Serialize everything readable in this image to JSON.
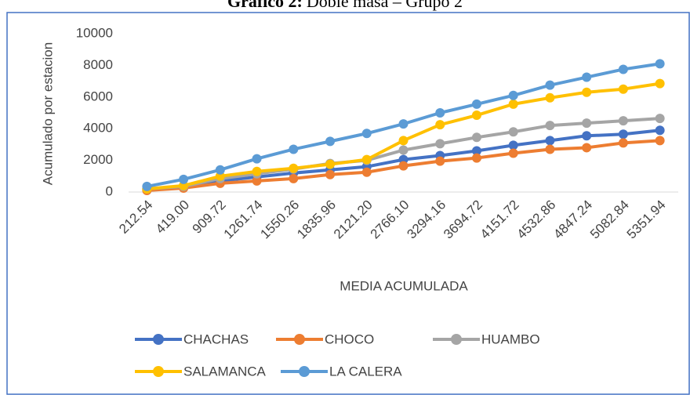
{
  "chart_data": {
    "type": "line",
    "title_prefix": "Gráfico 2:",
    "title": "Doble masa – Grupo 2",
    "x_label": "MEDIA ACUMULADA",
    "y_label": "Acumulado por estacion",
    "categories": [
      "212.54",
      "419.00",
      "909.72",
      "1261.74",
      "1550.26",
      "1835.96",
      "2121.20",
      "2766.10",
      "3294.16",
      "3694.72",
      "4151.72",
      "4532.86",
      "4847.24",
      "5082.84",
      "5351.94"
    ],
    "series": [
      {
        "name": "CHACHAS",
        "color": "#4472c4",
        "values": [
          150,
          300,
          700,
          950,
          1200,
          1400,
          1600,
          2050,
          2300,
          2600,
          2950,
          3250,
          3550,
          3650,
          3900
        ]
      },
      {
        "name": "CHOCO",
        "color": "#ed7d31",
        "values": [
          100,
          250,
          550,
          700,
          850,
          1100,
          1250,
          1650,
          1950,
          2150,
          2450,
          2700,
          2800,
          3100,
          3250
        ]
      },
      {
        "name": "HUAMBO",
        "color": "#a5a5a5",
        "values": [
          200,
          350,
          850,
          1150,
          1450,
          1800,
          2000,
          2650,
          3050,
          3450,
          3800,
          4200,
          4350,
          4500,
          4650
        ]
      },
      {
        "name": "SALAMANCA",
        "color": "#ffc000",
        "values": [
          200,
          400,
          1000,
          1300,
          1500,
          1750,
          2050,
          3250,
          4250,
          4850,
          5550,
          5950,
          6300,
          6500,
          6850
        ]
      },
      {
        "name": "LA CALERA",
        "color": "#5b9bd5",
        "values": [
          350,
          800,
          1400,
          2100,
          2700,
          3200,
          3700,
          4300,
          5000,
          5550,
          6100,
          6750,
          7250,
          7750,
          8100
        ]
      }
    ],
    "ylim": [
      0,
      10000
    ],
    "yticks": [
      0,
      2000,
      4000,
      6000,
      8000,
      10000
    ],
    "grid": false
  }
}
